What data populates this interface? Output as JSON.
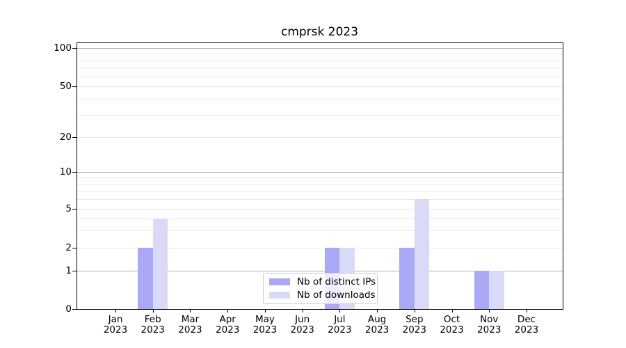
{
  "page": {
    "background": "#ffffff"
  },
  "chart_data": {
    "type": "bar",
    "title": "cmprsk 2023",
    "categories": [
      "Jan",
      "Feb",
      "Mar",
      "Apr",
      "May",
      "Jun",
      "Jul",
      "Aug",
      "Sep",
      "Oct",
      "Nov",
      "Dec"
    ],
    "category_year": "2023",
    "series": [
      {
        "name": "Nb of distinct IPs",
        "color": "#a9a9f8",
        "values": [
          0,
          2,
          0,
          0,
          0,
          0,
          2,
          0,
          2,
          0,
          1,
          0
        ]
      },
      {
        "name": "Nb of downloads",
        "color": "#d9d9f8",
        "values": [
          0,
          4,
          0,
          0,
          0,
          0,
          2,
          0,
          6,
          0,
          1,
          0
        ]
      }
    ],
    "yticks": [
      0,
      1,
      2,
      5,
      10,
      20,
      50,
      100
    ],
    "ytick_labels": [
      "0",
      "1",
      "2",
      "5",
      "10",
      "20",
      "50",
      "100"
    ],
    "major_grid_values": [
      1,
      10,
      100
    ],
    "minor_grid_values": [
      2,
      3,
      4,
      5,
      6,
      7,
      8,
      9,
      20,
      30,
      40,
      50,
      60,
      70,
      80,
      90
    ],
    "xlabel": "",
    "ylabel": "",
    "ylim": [
      0,
      110
    ],
    "yscale": "symlog",
    "grid": "both",
    "legend_position": "lower-center-inside"
  },
  "colors": {
    "bar_ips": "#a9a9f8",
    "bar_downloads": "#d9d9f8",
    "major_grid": "#b0b0b0",
    "minor_grid": "#e8e8e8",
    "axis": "#000000",
    "text": "#000000",
    "legend_border": "#cccccc"
  }
}
